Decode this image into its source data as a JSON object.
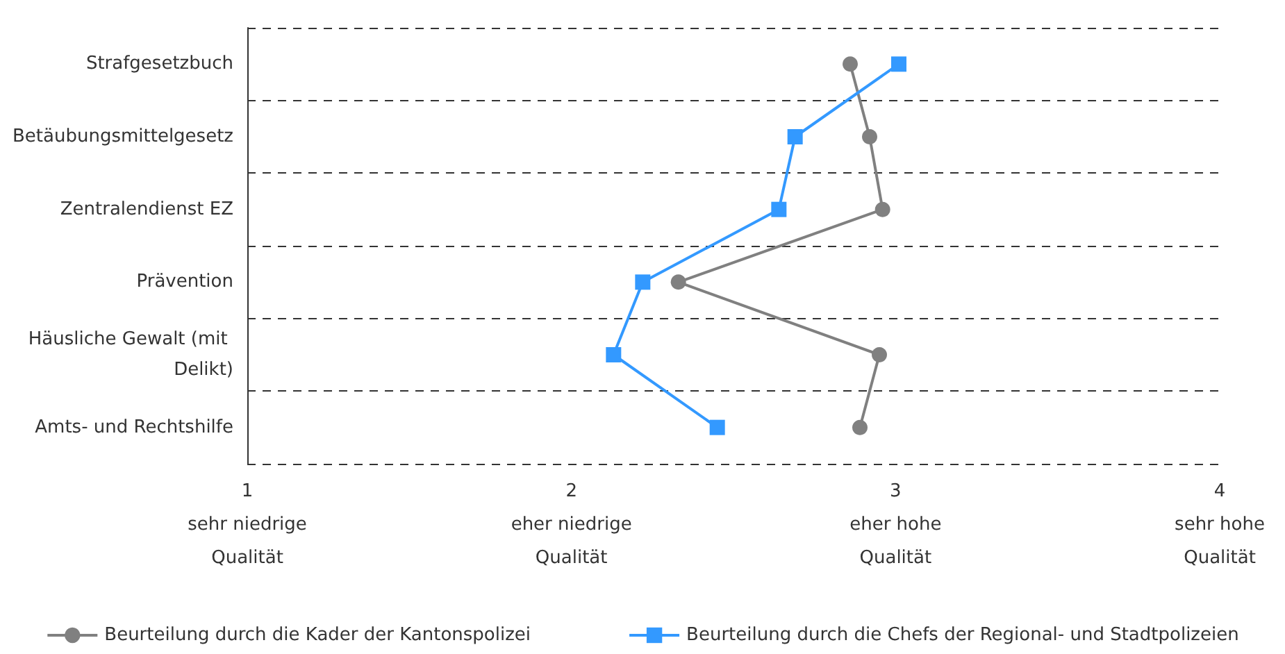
{
  "chart_data": {
    "type": "line",
    "orientation": "horizontal",
    "categories": [
      "Strafgesetzbuch",
      "Betäubungsmittelgesetz",
      "Zentralendienst EZ",
      "Prävention",
      "Häusliche Gewalt (mit Delikt)",
      "Amts- und Rechtshilfe"
    ],
    "xlim": [
      1,
      4
    ],
    "xticks": [
      {
        "value": 1,
        "label": "1\nsehr niedrige\nQualität"
      },
      {
        "value": 2,
        "label": "2\neher niedrige\nQualität"
      },
      {
        "value": 3,
        "label": "3\neher hohe\nQualität"
      },
      {
        "value": 4,
        "label": "4\nsehr hohe\nQualität"
      }
    ],
    "grid": "y",
    "legend": "bottom",
    "series": [
      {
        "name": "Beurteilung durch die Kader der Kantonspolizei",
        "color": "#808080",
        "marker": "circle",
        "values": [
          2.86,
          2.92,
          2.96,
          2.33,
          2.95,
          2.89
        ]
      },
      {
        "name": "Beurteilung durch die Chefs der Regional- und Stadtpolizeien",
        "color": "#3399ff",
        "marker": "square",
        "values": [
          3.01,
          2.69,
          2.64,
          2.22,
          2.13,
          2.45
        ]
      }
    ]
  }
}
